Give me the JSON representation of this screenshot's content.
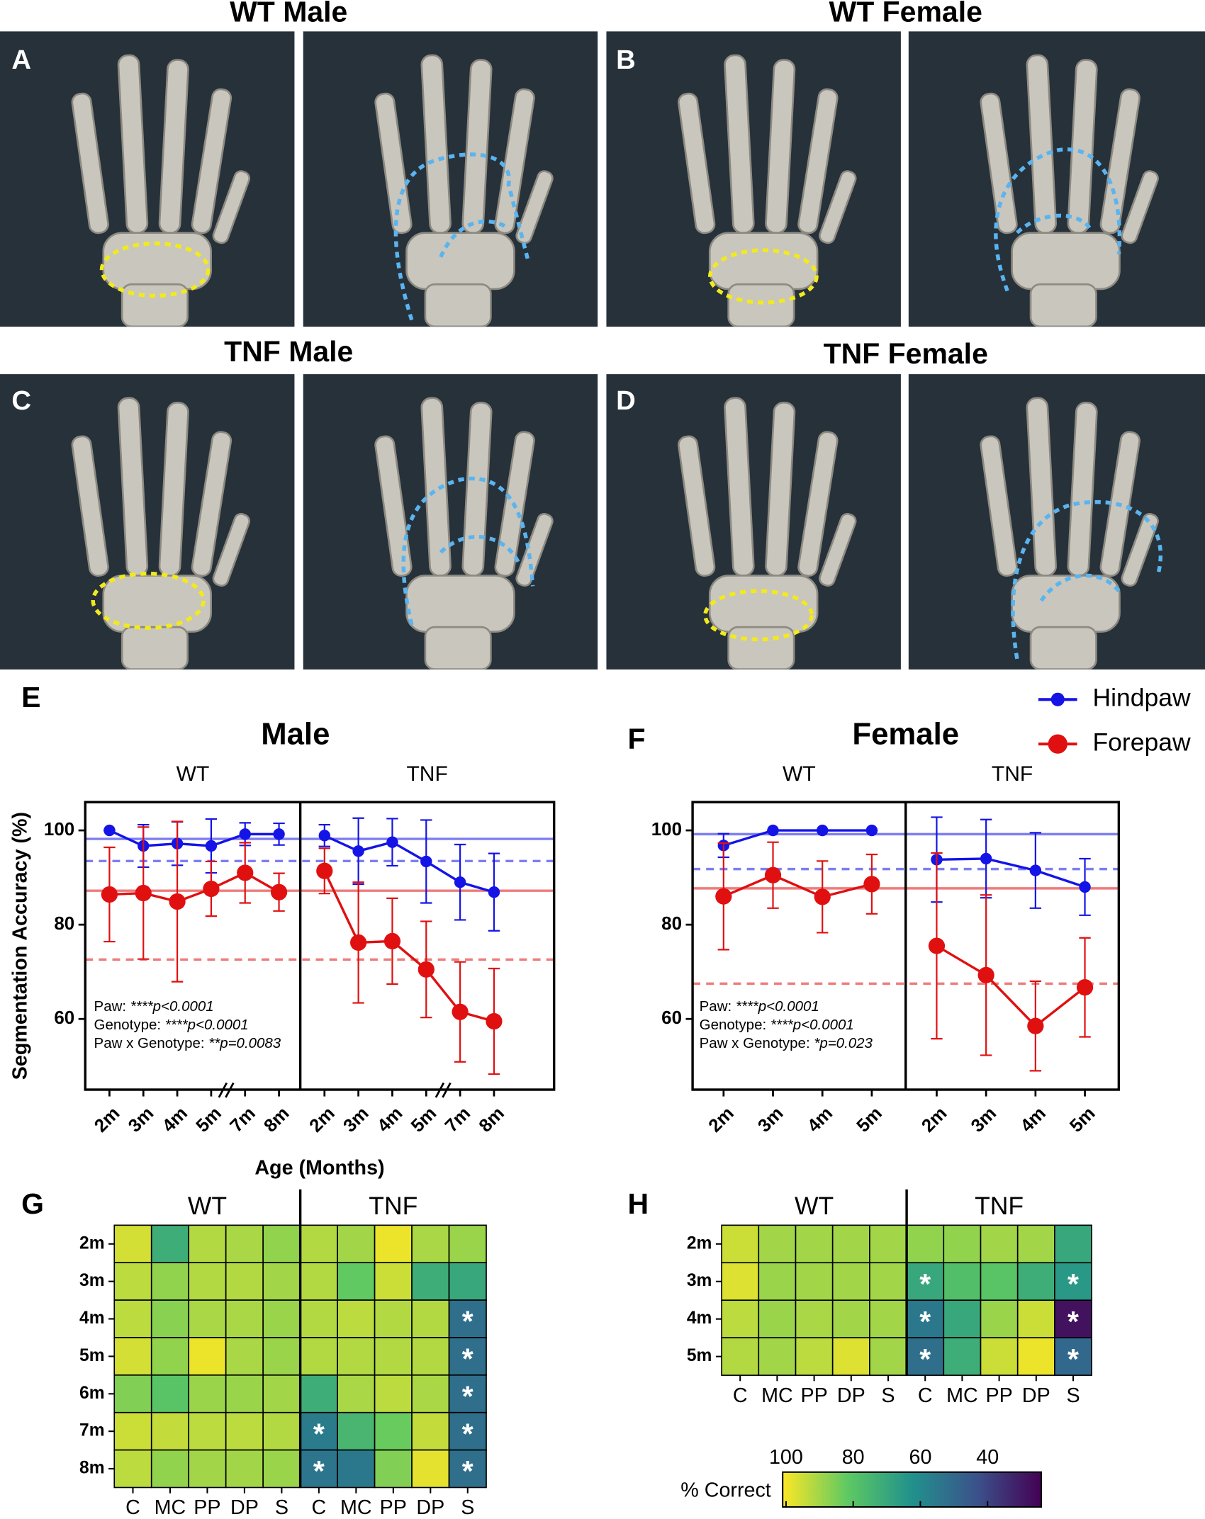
{
  "image_panels": [
    {
      "title": "WT Male",
      "label": "A"
    },
    {
      "title": "WT Female",
      "label": "B"
    },
    {
      "title": "TNF Male",
      "label": "C"
    },
    {
      "title": "TNF Female",
      "label": "D"
    }
  ],
  "chart_data": [
    {
      "type": "line",
      "panel_label": "E",
      "title": "Male",
      "y_label": "Segmentation Accuracy (%)",
      "x_label": "Age (Months)",
      "ylim": [
        45,
        106
      ],
      "yticks": [
        60,
        80,
        100
      ],
      "legend": [
        {
          "name": "Hindpaw",
          "color": "#1414e6"
        },
        {
          "name": "Forepaw",
          "color": "#e01010"
        }
      ],
      "facets": [
        {
          "label": "WT",
          "categories": [
            "2m",
            "3m",
            "4m",
            "5m",
            "7m",
            "8m"
          ],
          "series": [
            {
              "color": "#1414e6",
              "values": [
                100,
                96.7,
                97.2,
                96.7,
                99.2,
                99.2
              ],
              "errors": [
                0,
                4.5,
                4.6,
                5.7,
                2.4,
                2.3
              ]
            },
            {
              "color": "#e01010",
              "values": [
                86.4,
                86.7,
                84.9,
                87.6,
                91,
                86.9
              ],
              "errors": [
                10,
                14,
                17,
                5.8,
                6.4,
                4
              ]
            }
          ]
        },
        {
          "label": "TNF",
          "categories": [
            "2m",
            "3m",
            "4m",
            "5m",
            "7m",
            "8m"
          ],
          "series": [
            {
              "color": "#1414e6",
              "values": [
                98.9,
                95.6,
                97.5,
                93.4,
                89,
                86.9
              ],
              "errors": [
                2.3,
                7,
                5,
                8.8,
                8,
                8.2
              ]
            },
            {
              "color": "#e01010",
              "values": [
                91.4,
                76.2,
                76.5,
                70.5,
                61.5,
                59.5
              ],
              "errors": [
                4.8,
                12.8,
                9.1,
                10.2,
                10.6,
                11.2
              ]
            }
          ]
        }
      ],
      "reference_lines": [
        {
          "value": 98.2,
          "color": "#1414e6",
          "style": "solid"
        },
        {
          "value": 93.5,
          "color": "#1414e6",
          "style": "dashed"
        },
        {
          "value": 87.2,
          "color": "#e01010",
          "style": "solid"
        },
        {
          "value": 72.6,
          "color": "#e01010",
          "style": "dashed"
        }
      ],
      "annotations": [
        {
          "label": "Paw:",
          "value": "****p<0.0001"
        },
        {
          "label": "Genotype:",
          "value": "****p<0.0001"
        },
        {
          "label": "Paw x Genotype:",
          "value": "**p=0.0083"
        }
      ]
    },
    {
      "type": "line",
      "panel_label": "F",
      "title": "Female",
      "ylim": [
        45,
        106
      ],
      "yticks": [
        60,
        80,
        100
      ],
      "facets": [
        {
          "label": "WT",
          "categories": [
            "2m",
            "3m",
            "4m",
            "5m"
          ],
          "series": [
            {
              "color": "#1414e6",
              "values": [
                96.8,
                100,
                100,
                100
              ],
              "errors": [
                2.5,
                0,
                0,
                0
              ]
            },
            {
              "color": "#e01010",
              "values": [
                86,
                90.5,
                85.9,
                88.6
              ],
              "errors": [
                11.3,
                7,
                7.6,
                6.3
              ]
            }
          ]
        },
        {
          "label": "TNF",
          "categories": [
            "2m",
            "3m",
            "4m",
            "5m"
          ],
          "series": [
            {
              "color": "#1414e6",
              "values": [
                93.8,
                94,
                91.5,
                88
              ],
              "errors": [
                9,
                8.3,
                8,
                6
              ]
            },
            {
              "color": "#e01010",
              "values": [
                75.5,
                69.3,
                58.5,
                66.7
              ],
              "errors": [
                19.7,
                17,
                9.5,
                10.5
              ]
            }
          ]
        }
      ],
      "reference_lines": [
        {
          "value": 99.2,
          "color": "#1414e6",
          "style": "solid"
        },
        {
          "value": 91.8,
          "color": "#1414e6",
          "style": "dashed"
        },
        {
          "value": 87.7,
          "color": "#e01010",
          "style": "solid"
        },
        {
          "value": 67.5,
          "color": "#e01010",
          "style": "dashed"
        }
      ],
      "annotations": [
        {
          "label": "Paw:",
          "value": "****p<0.0001"
        },
        {
          "label": "Genotype:",
          "value": "****p<0.0001"
        },
        {
          "label": "Paw x Genotype:",
          "value": "*p=0.023"
        }
      ]
    },
    {
      "type": "heatmap",
      "panel_label": "G",
      "rows": [
        "2m",
        "3m",
        "4m",
        "5m",
        "6m",
        "7m",
        "8m"
      ],
      "columns": [
        "C",
        "MC",
        "PP",
        "DP",
        "S"
      ],
      "clim": [
        101,
        24
      ],
      "colormap": [
        "#fde725",
        "#5ec962",
        "#21918c",
        "#3b528b",
        "#440154"
      ],
      "facets": [
        {
          "label": "WT",
          "values": [
            [
              96,
              72,
              92,
              91,
              88
            ],
            [
              93,
              88,
              92,
              92,
              90
            ],
            [
              93,
              87,
              91,
              91,
              89
            ],
            [
              96,
              88,
              99,
              91,
              89
            ],
            [
              86,
              80,
              89,
              89,
              90
            ],
            [
              95,
              94,
              93,
              93,
              92
            ],
            [
              93,
              88,
              90,
              90,
              89
            ]
          ]
        },
        {
          "label": "TNF",
          "values": [
            [
              92,
              90,
              99,
              91,
              89
            ],
            [
              92,
              82,
              95,
              72,
              70
            ],
            [
              92,
              93,
              92,
              92,
              52
            ],
            [
              92,
              92,
              92,
              92,
              52
            ],
            [
              72,
              91,
              93,
              91,
              52
            ],
            [
              56,
              75,
              83,
              94,
              52
            ],
            [
              54,
              55,
              86,
              98,
              52
            ]
          ],
          "significance": [
            [
              null,
              null,
              null,
              null,
              null
            ],
            [
              null,
              null,
              null,
              null,
              null
            ],
            [
              null,
              null,
              null,
              null,
              "*"
            ],
            [
              null,
              null,
              null,
              null,
              "*"
            ],
            [
              null,
              null,
              null,
              null,
              "*"
            ],
            [
              "*",
              null,
              null,
              null,
              "*"
            ],
            [
              "*",
              null,
              null,
              null,
              "*"
            ]
          ]
        }
      ]
    },
    {
      "type": "heatmap",
      "panel_label": "H",
      "rows": [
        "2m",
        "3m",
        "4m",
        "5m"
      ],
      "columns": [
        "C",
        "MC",
        "PP",
        "DP",
        "S"
      ],
      "clim": [
        101,
        24
      ],
      "colormap": [
        "#fde725",
        "#5ec962",
        "#21918c",
        "#3b528b",
        "#440154"
      ],
      "facets": [
        {
          "label": "WT",
          "values": [
            [
              95,
              90,
              90,
              90,
              90
            ],
            [
              97,
              89,
              90,
              90,
              90
            ],
            [
              93,
              89,
              91,
              90,
              90
            ],
            [
              92,
              90,
              93,
              97,
              90
            ]
          ]
        },
        {
          "label": "TNF",
          "values": [
            [
              88,
              88,
              90,
              90,
              70
            ],
            [
              70,
              78,
              80,
              72,
              65
            ],
            [
              55,
              70,
              89,
              95,
              28
            ],
            [
              52,
              72,
              95,
              99,
              50
            ]
          ],
          "significance": [
            [
              null,
              null,
              null,
              null,
              null
            ],
            [
              "*",
              null,
              null,
              null,
              "*"
            ],
            [
              "*",
              null,
              null,
              null,
              "*"
            ],
            [
              "*",
              null,
              null,
              null,
              "*"
            ]
          ]
        }
      ],
      "colorbar": {
        "label": "% Correct",
        "ticks": [
          100,
          80,
          60,
          40
        ]
      }
    }
  ]
}
